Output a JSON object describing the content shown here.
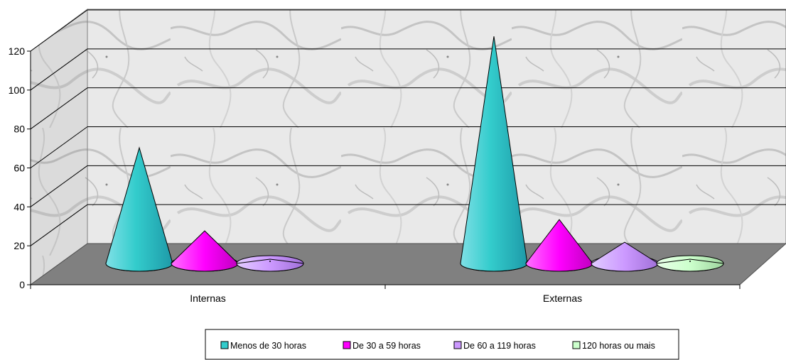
{
  "chart_data": {
    "type": "bar",
    "style": "3d-cone",
    "categories": [
      "Internas",
      "Externas"
    ],
    "series": [
      {
        "name": "Menos de 30 horas",
        "values": [
          59,
          118
        ],
        "color": "#33CCCC"
      },
      {
        "name": "De 30 a 59 horas",
        "values": [
          15,
          21
        ],
        "color": "#FF00FF"
      },
      {
        "name": "De 60 a 119 horas",
        "values": [
          0,
          9
        ],
        "color": "#CC99FF"
      },
      {
        "name": "120 horas ou mais",
        "values": [
          null,
          0
        ],
        "color": "#CCFFCC"
      }
    ],
    "ylim": [
      0,
      120
    ],
    "yticks": [
      0,
      20,
      40,
      60,
      80,
      100,
      120
    ],
    "grid": true,
    "legend_position": "bottom",
    "colors": {
      "wall": "marble-gray",
      "floor": "#808080"
    }
  }
}
